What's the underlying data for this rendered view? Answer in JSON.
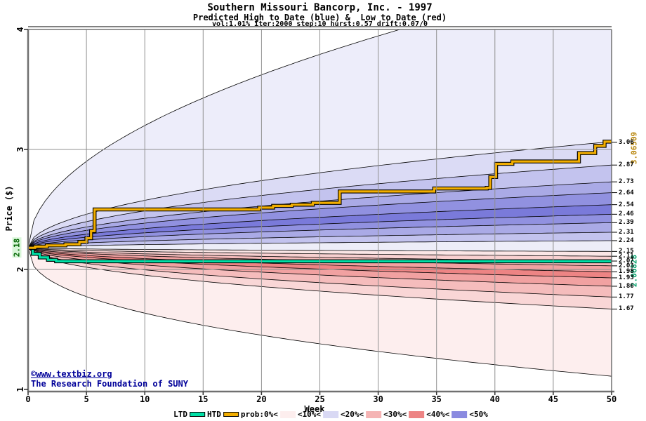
{
  "title": {
    "line1": "Southern Missouri Bancorp, Inc. - 1997",
    "line2": "Predicted High to Date (blue) &  Low to Date (red)",
    "line3": "vol:1.01% iter:2000 step:10 hurst:0.57 drift:0.07/0"
  },
  "watermark": {
    "line1": "©www.textbiz.org",
    "line2": "The Research Foundation of SUNY"
  },
  "axes": {
    "y_label": "Price ($)",
    "x_label": "Week",
    "y_ticks": [
      "4",
      "3",
      "2",
      "1"
    ],
    "x_ticks": [
      "0",
      "5",
      "10",
      "15",
      "20",
      "25",
      "30",
      "35",
      "40",
      "45",
      "50"
    ]
  },
  "annotations": {
    "start_price": "2.18",
    "htd_final": "3.06509",
    "ltd_final": "2.06828"
  },
  "colors": {
    "htd_line": "#f2ae00",
    "ltd_line": "#00e0a6",
    "htd_final_text": "#b8860b",
    "ltd_final_text": "#00a06a",
    "start_price_text": "#006400",
    "start_price_bg": "#d8f6d8",
    "watermark_text": "#000099",
    "gridline": "#909090",
    "frame": "#707070",
    "boundary_line": "#000000"
  },
  "legend": {
    "items": [
      {
        "type": "linekey",
        "label": "LTD",
        "color": "#00e0a6"
      },
      {
        "type": "linekey",
        "label": "HTD",
        "color": "#f2ae00"
      },
      {
        "type": "label",
        "text": "prob:0%<"
      },
      {
        "type": "swatch",
        "color": "#fdeeee"
      },
      {
        "type": "label",
        "text": "<10%<"
      },
      {
        "type": "swatch",
        "color": "#d9d9f4"
      },
      {
        "type": "label",
        "text": "<20%<"
      },
      {
        "type": "swatch",
        "color": "#f5b4b4"
      },
      {
        "type": "label",
        "text": "<30%<"
      },
      {
        "type": "swatch",
        "color": "#ed8484"
      },
      {
        "type": "label",
        "text": "<40%<"
      },
      {
        "type": "swatch",
        "color": "#8a8ae0"
      },
      {
        "type": "label",
        "text": "<50%"
      }
    ]
  },
  "chart_data": {
    "type": "area",
    "title": "Southern Missouri Bancorp, Inc. - 1997",
    "xlabel": "Week",
    "ylabel": "Price ($)",
    "xlim": [
      0,
      50
    ],
    "ylim": [
      1,
      4
    ],
    "grid": true,
    "start_point": {
      "week": 0,
      "price": 2.18
    },
    "band_boundaries": [
      {
        "end": 4.46,
        "exp": 0.5
      },
      {
        "end": 3.065,
        "exp": 0.5
      },
      {
        "end": 2.87,
        "exp": 0.5
      },
      {
        "end": 2.73,
        "exp": 0.5
      },
      {
        "end": 2.64,
        "exp": 0.5
      },
      {
        "end": 2.54,
        "exp": 0.5
      },
      {
        "end": 2.46,
        "exp": 0.5
      },
      {
        "end": 2.39,
        "exp": 0.5
      },
      {
        "end": 2.31,
        "exp": 0.5
      },
      {
        "end": 2.24,
        "exp": 0.5
      },
      {
        "end": 2.15,
        "exp": 0.5
      },
      {
        "end": 2.11,
        "exp": 0.5
      },
      {
        "end": 2.068,
        "exp": 0.5
      },
      {
        "end": 2.03,
        "exp": 0.5
      },
      {
        "end": 1.98,
        "exp": 0.5
      },
      {
        "end": 1.93,
        "exp": 0.5
      },
      {
        "end": 1.86,
        "exp": 0.5
      },
      {
        "end": 1.77,
        "exp": 0.5
      },
      {
        "end": 1.67,
        "exp": 0.5
      },
      {
        "end": 1.11,
        "exp": 0.42
      }
    ],
    "band_colors": [
      "#ededfa",
      "#dbdbf5",
      "#c3c3ee",
      "#aaaae6",
      "#9191e0",
      "#7a7ada",
      "#9191e0",
      "#aaaae6",
      "#c3c3ee",
      "#ededf8",
      "#fbe6e6",
      "#f8d0d0",
      "#f5baba",
      "#f1a1a1",
      "#ed8484",
      "#f1a1a1",
      "#f5bcbc",
      "#f9d6d6",
      "#fdeeee"
    ],
    "band_end_labels": [
      "3.06",
      "2.87",
      "2.73",
      "2.64",
      "2.54",
      "2.46",
      "2.39",
      "2.31",
      "2.24",
      "2.15",
      "2.11",
      "2.07",
      "2.03",
      "1.98",
      "1.93",
      "1.86",
      "1.77",
      "1.67"
    ],
    "htd_steps": [
      [
        0,
        2.18
      ],
      [
        0.6,
        2.19
      ],
      [
        1.6,
        2.2
      ],
      [
        3.2,
        2.21
      ],
      [
        4.4,
        2.23
      ],
      [
        5.0,
        2.26
      ],
      [
        5.4,
        2.32
      ],
      [
        5.7,
        2.5
      ],
      [
        19.8,
        2.515
      ],
      [
        21.0,
        2.53
      ],
      [
        22.6,
        2.54
      ],
      [
        24.4,
        2.555
      ],
      [
        26.7,
        2.65
      ],
      [
        34.8,
        2.675
      ],
      [
        39.3,
        2.68
      ],
      [
        39.6,
        2.77
      ],
      [
        40.1,
        2.88
      ],
      [
        41.5,
        2.9
      ],
      [
        47.2,
        2.97
      ],
      [
        48.6,
        3.03
      ],
      [
        49.4,
        3.065
      ],
      [
        50,
        3.065
      ]
    ],
    "ltd_steps": [
      [
        0,
        2.18
      ],
      [
        0.4,
        2.13
      ],
      [
        1.0,
        2.1
      ],
      [
        1.7,
        2.08
      ],
      [
        2.4,
        2.068
      ],
      [
        50,
        2.068
      ]
    ],
    "htd_final_value": 3.06509,
    "ltd_final_value": 2.06828
  }
}
